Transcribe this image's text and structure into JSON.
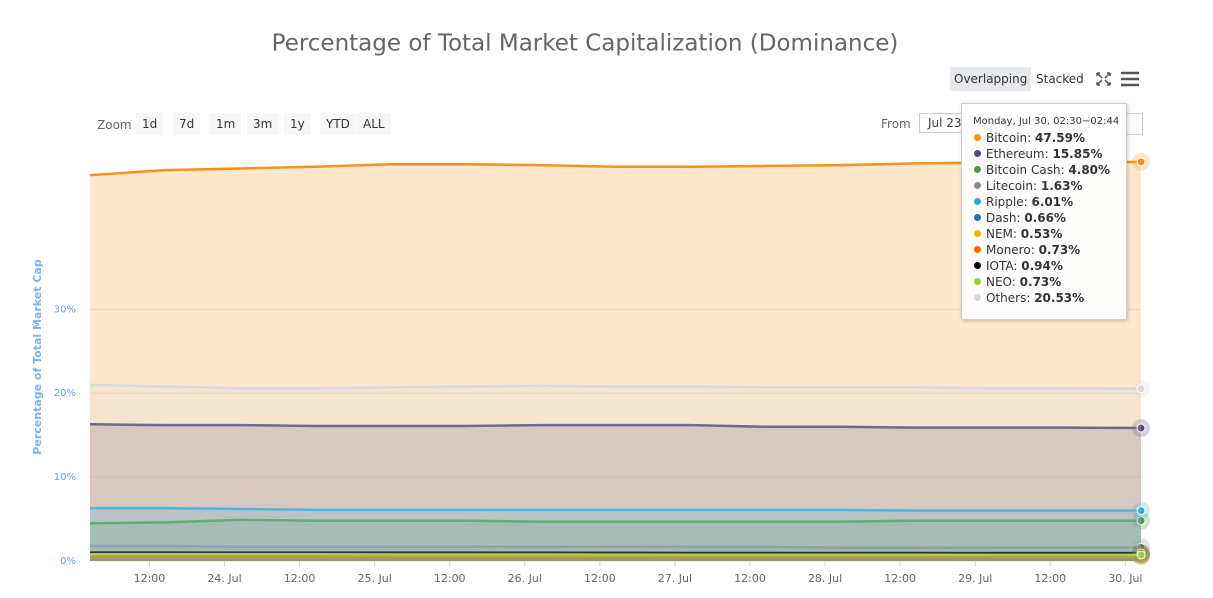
{
  "chart_data": {
    "type": "area",
    "title": "Percentage of Total Market Capitalization (Dominance)",
    "y_axis_title": "Percentage of Total Market Cap",
    "controls": {
      "zoom_label": "Zoom",
      "zoom_buttons": [
        "1d",
        "7d",
        "1m",
        "3m",
        "1y",
        "YTD",
        "ALL"
      ],
      "from_label": "From",
      "from_value": "Jul 23",
      "modes": [
        "Overlapping",
        "Stacked"
      ]
    },
    "x": [
      2.5,
      14.5,
      26.5,
      38.5,
      50.5,
      62.5,
      74.5,
      86.5,
      98.5,
      110.5,
      122.5,
      134.5,
      146.5,
      158.5,
      170.5
    ],
    "xlim": [
      2.5,
      170.5
    ],
    "xticks": [
      {
        "value": 12,
        "label": "12:00"
      },
      {
        "value": 24,
        "label": "24. Jul"
      },
      {
        "value": 36,
        "label": "12:00"
      },
      {
        "value": 48,
        "label": "25. Jul"
      },
      {
        "value": 60,
        "label": "12:00"
      },
      {
        "value": 72,
        "label": "26. Jul"
      },
      {
        "value": 84,
        "label": "12:00"
      },
      {
        "value": 96,
        "label": "27. Jul"
      },
      {
        "value": 108,
        "label": "12:00"
      },
      {
        "value": 120,
        "label": "28. Jul"
      },
      {
        "value": 132,
        "label": "12:00"
      },
      {
        "value": 144,
        "label": "29. Jul"
      },
      {
        "value": 156,
        "label": "12:00"
      },
      {
        "value": 168,
        "label": "30. Jul"
      }
    ],
    "ylim": [
      0,
      49
    ],
    "yticks": [
      {
        "value": 0,
        "label": "0%"
      },
      {
        "value": 10,
        "label": "10%"
      },
      {
        "value": 20,
        "label": "20%"
      },
      {
        "value": 30,
        "label": "30%"
      }
    ],
    "grid": true,
    "series": [
      {
        "name": "Bitcoin",
        "color": "#f7931a",
        "values": [
          46.0,
          46.6,
          46.8,
          47.0,
          47.3,
          47.3,
          47.2,
          47.0,
          47.0,
          47.1,
          47.2,
          47.4,
          47.5,
          47.5,
          47.59
        ]
      },
      {
        "name": "Ethereum",
        "color": "#4e4d72",
        "values": [
          16.3,
          16.2,
          16.2,
          16.1,
          16.1,
          16.1,
          16.2,
          16.2,
          16.2,
          16.0,
          16.0,
          15.9,
          15.9,
          15.9,
          15.85
        ]
      },
      {
        "name": "Bitcoin Cash",
        "color": "#4a9a3a",
        "values": [
          4.5,
          4.6,
          4.9,
          4.8,
          4.8,
          4.8,
          4.7,
          4.7,
          4.7,
          4.7,
          4.7,
          4.8,
          4.8,
          4.8,
          4.8
        ]
      },
      {
        "name": "Litecoin",
        "color": "#8c8c8c",
        "values": [
          1.8,
          1.8,
          1.7,
          1.7,
          1.7,
          1.7,
          1.7,
          1.7,
          1.7,
          1.7,
          1.6,
          1.6,
          1.6,
          1.6,
          1.63
        ]
      },
      {
        "name": "Ripple",
        "color": "#2ea8e0",
        "values": [
          6.3,
          6.3,
          6.2,
          6.1,
          6.1,
          6.1,
          6.1,
          6.1,
          6.1,
          6.1,
          6.1,
          6.0,
          6.0,
          6.0,
          6.01
        ]
      },
      {
        "name": "Dash",
        "color": "#1c75bc",
        "values": [
          0.7,
          0.7,
          0.7,
          0.7,
          0.7,
          0.7,
          0.7,
          0.7,
          0.7,
          0.7,
          0.7,
          0.7,
          0.7,
          0.7,
          0.66
        ]
      },
      {
        "name": "NEM",
        "color": "#f5b300",
        "values": [
          0.55,
          0.55,
          0.55,
          0.55,
          0.55,
          0.55,
          0.54,
          0.54,
          0.54,
          0.54,
          0.54,
          0.53,
          0.53,
          0.53,
          0.53
        ]
      },
      {
        "name": "Monero",
        "color": "#ff6600",
        "values": [
          0.75,
          0.75,
          0.75,
          0.75,
          0.75,
          0.75,
          0.74,
          0.74,
          0.74,
          0.74,
          0.74,
          0.73,
          0.73,
          0.73,
          0.73
        ]
      },
      {
        "name": "IOTA",
        "color": "#000000",
        "values": [
          1.0,
          1.0,
          1.0,
          1.0,
          1.0,
          1.0,
          0.98,
          0.97,
          0.96,
          0.96,
          0.95,
          0.95,
          0.94,
          0.94,
          0.94
        ]
      },
      {
        "name": "NEO",
        "color": "#9acd32",
        "values": [
          0.8,
          0.8,
          0.8,
          0.8,
          0.78,
          0.78,
          0.77,
          0.76,
          0.75,
          0.75,
          0.74,
          0.74,
          0.73,
          0.73,
          0.73
        ]
      },
      {
        "name": "Others",
        "color": "#d9d9d9",
        "values": [
          21.0,
          20.8,
          20.6,
          20.6,
          20.7,
          20.8,
          20.9,
          20.8,
          20.8,
          20.7,
          20.7,
          20.7,
          20.6,
          20.6,
          20.53
        ]
      }
    ],
    "tooltip": {
      "header": "Monday, Jul 30, 02:30−02:44",
      "values": [
        47.59,
        15.85,
        4.8,
        1.63,
        6.01,
        0.66,
        0.53,
        0.73,
        0.94,
        0.73,
        20.53
      ],
      "value_labels": [
        "47.59%",
        "15.85%",
        "4.80%",
        "1.63%",
        "6.01%",
        "0.66%",
        "0.53%",
        "0.73%",
        "0.94%",
        "0.73%",
        "20.53%"
      ]
    }
  }
}
